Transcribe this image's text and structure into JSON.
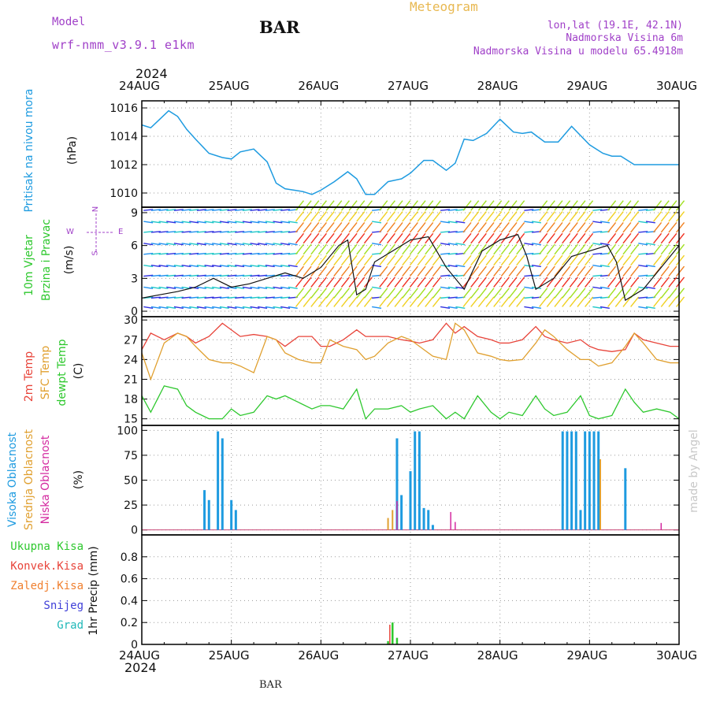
{
  "header": {
    "model_label": "Model",
    "model_name": "wrf-nmm_v3.9.1 e1km",
    "station": "BAR",
    "meteogram": "Meteogram",
    "lonlat": "lon,lat (19.1E, 42.1N)",
    "altitude": "Nadmorska Visina 6m",
    "model_altitude": "Nadmorska Visina u modelu 65.4918m"
  },
  "footer": {
    "station": "BAR"
  },
  "credit": "made by Angel",
  "colors": {
    "pressure": "#1e9be0",
    "wind_speed": "#111111",
    "temp": "#e8443a",
    "sfc_temp": "#e0a030",
    "dewpoint": "#2ec82e",
    "high_cloud": "#1e9be0",
    "mid_cloud": "#e0a030",
    "low_cloud": "#d42aa0",
    "total_precip": "#2ec82e",
    "convective": "#e8443a",
    "frozen": "#f08030",
    "snow": "#4040d8",
    "graupel": "#20b8b8",
    "title_purple": "#a040c8",
    "meteogram_orange": "#e8b850"
  },
  "time_axis": {
    "year": "2024",
    "labels": [
      "24AUG",
      "25AUG",
      "26AUG",
      "27AUG",
      "28AUG",
      "29AUG",
      "30AUG"
    ]
  },
  "chart_data": [
    {
      "type": "line",
      "panel": "pressure",
      "ylabels": [
        "Pritisak na nivou mora"
      ],
      "unit": "(hPa)",
      "ylim": [
        1009,
        1016.5
      ],
      "yticks": [
        1010,
        1012,
        1014,
        1016
      ],
      "grid": true,
      "x_days": [
        0,
        0.1,
        0.2,
        0.3,
        0.4,
        0.5,
        0.6,
        0.75,
        0.9,
        1.0,
        1.1,
        1.25,
        1.4,
        1.5,
        1.6,
        1.7,
        1.8,
        1.9,
        2.0,
        2.15,
        2.3,
        2.4,
        2.5,
        2.6,
        2.75,
        2.9,
        3.0,
        3.15,
        3.25,
        3.4,
        3.5,
        3.6,
        3.7,
        3.85,
        4.0,
        4.15,
        4.25,
        4.35,
        4.5,
        4.65,
        4.8,
        5.0,
        5.15,
        5.25,
        5.35,
        5.5,
        5.6,
        5.75,
        5.9,
        6.0
      ],
      "series": [
        {
          "values": [
            1014.8,
            1014.6,
            1015.2,
            1015.8,
            1015.4,
            1014.5,
            1013.8,
            1012.8,
            1012.5,
            1012.4,
            1012.9,
            1013.1,
            1012.2,
            1010.7,
            1010.3,
            1010.2,
            1010.1,
            1009.9,
            1010.2,
            1010.8,
            1011.5,
            1011.0,
            1009.9,
            1009.9,
            1010.8,
            1011.0,
            1011.4,
            1012.3,
            1012.3,
            1011.6,
            1012.1,
            1013.8,
            1013.7,
            1014.2,
            1015.2,
            1014.3,
            1014.2,
            1014.3,
            1013.6,
            1013.6,
            1014.7,
            1013.4,
            1012.8,
            1012.6,
            1012.6,
            1012.0,
            1012.0,
            1012.0,
            1012.0,
            1012.0
          ]
        }
      ]
    },
    {
      "type": "line",
      "panel": "wind",
      "ylabels": [
        "10m Vjetar",
        "Brzina i Pravac"
      ],
      "unit": "(m/s)",
      "compass": {
        "n": "N",
        "s": "S",
        "w": "W",
        "e": "E"
      },
      "ylim": [
        -0.5,
        9.5
      ],
      "yticks": [
        0,
        3,
        6,
        9
      ],
      "grid": true,
      "x_days": [
        0,
        0.2,
        0.4,
        0.6,
        0.8,
        1.0,
        1.2,
        1.4,
        1.6,
        1.8,
        2.0,
        2.2,
        2.3,
        2.4,
        2.5,
        2.6,
        2.8,
        3.0,
        3.2,
        3.4,
        3.6,
        3.8,
        4.0,
        4.2,
        4.3,
        4.4,
        4.6,
        4.8,
        5.0,
        5.2,
        5.3,
        5.4,
        5.6,
        5.8,
        6.0
      ],
      "series": [
        {
          "values": [
            1.2,
            1.5,
            1.8,
            2.2,
            3.0,
            2.2,
            2.5,
            3.0,
            3.5,
            3.0,
            4.0,
            6.0,
            6.5,
            1.5,
            2.0,
            4.5,
            5.5,
            6.5,
            6.8,
            4.0,
            2.0,
            5.5,
            6.5,
            7.0,
            5.0,
            2.0,
            3.0,
            5.0,
            5.5,
            6.0,
            4.5,
            1.0,
            2.0,
            4.0,
            6.0
          ]
        }
      ]
    },
    {
      "type": "line",
      "panel": "temperature",
      "ylabels": [
        "2m Temp",
        "SFC Temp",
        "dewpt Temp"
      ],
      "unit": "(C)",
      "ylim": [
        14,
        30.5
      ],
      "yticks": [
        15,
        18,
        21,
        24,
        27,
        30
      ],
      "grid": true,
      "x_days": [
        0,
        0.1,
        0.25,
        0.4,
        0.5,
        0.6,
        0.75,
        0.9,
        1.0,
        1.1,
        1.25,
        1.4,
        1.5,
        1.6,
        1.75,
        1.9,
        2.0,
        2.1,
        2.25,
        2.4,
        2.5,
        2.6,
        2.75,
        2.9,
        3.0,
        3.1,
        3.25,
        3.4,
        3.5,
        3.6,
        3.75,
        3.9,
        4.0,
        4.1,
        4.25,
        4.4,
        4.5,
        4.6,
        4.75,
        4.9,
        5.0,
        5.1,
        5.25,
        5.4,
        5.5,
        5.6,
        5.75,
        5.9,
        6.0
      ],
      "series": [
        {
          "name": "2m Temp",
          "values": [
            25.5,
            28.0,
            27.0,
            28.0,
            27.5,
            26.5,
            27.5,
            29.5,
            28.5,
            27.5,
            27.8,
            27.5,
            27.0,
            26.0,
            27.5,
            27.5,
            26.0,
            26.0,
            27.0,
            28.5,
            27.5,
            27.5,
            27.5,
            27.0,
            26.8,
            26.5,
            27.0,
            29.5,
            28.0,
            29.0,
            27.5,
            27.0,
            26.5,
            26.5,
            27.0,
            29.0,
            27.5,
            27.0,
            26.5,
            27.0,
            26.0,
            25.5,
            25.2,
            25.5,
            28.0,
            27.0,
            26.5,
            26.0,
            26.0
          ]
        },
        {
          "name": "SFC Temp",
          "values": [
            25.0,
            21.0,
            26.5,
            28.0,
            27.5,
            26.0,
            24.0,
            23.5,
            23.5,
            23.0,
            22.0,
            27.5,
            27.0,
            25.0,
            24.0,
            23.5,
            23.5,
            27.0,
            26.0,
            25.5,
            24.0,
            24.5,
            26.5,
            27.5,
            27.0,
            26.0,
            24.5,
            24.0,
            29.5,
            28.5,
            25.0,
            24.5,
            24.0,
            23.8,
            24.0,
            26.5,
            28.5,
            27.5,
            25.5,
            24.0,
            24.0,
            23.0,
            23.5,
            26.0,
            28.0,
            26.5,
            24.0,
            23.5,
            23.5
          ]
        },
        {
          "name": "dewpt Temp",
          "values": [
            18.5,
            16.0,
            20.0,
            19.5,
            17.0,
            16.0,
            15.0,
            15.0,
            16.5,
            15.5,
            16.0,
            18.5,
            18.0,
            18.5,
            17.5,
            16.5,
            17.0,
            17.0,
            16.5,
            19.5,
            15.0,
            16.5,
            16.5,
            17.0,
            16.0,
            16.5,
            17.0,
            15.0,
            16.0,
            15.0,
            18.5,
            16.0,
            15.0,
            16.0,
            15.5,
            18.5,
            16.5,
            15.5,
            16.0,
            18.5,
            15.5,
            15.0,
            15.5,
            19.5,
            17.5,
            16.0,
            16.5,
            16.0,
            15.0
          ]
        }
      ]
    },
    {
      "type": "bar",
      "panel": "clouds",
      "ylabels": [
        "Visoka Oblacnost",
        "Srednja Oblacnost",
        "Niska Oblacnost"
      ],
      "unit": "(%)",
      "ylim": [
        -5,
        105
      ],
      "yticks": [
        0,
        25,
        50,
        75,
        100
      ],
      "grid": true,
      "series": [
        {
          "name": "Visoka Oblacnost",
          "x_days": [
            0.7,
            0.75,
            0.85,
            0.9,
            1.0,
            1.05,
            2.85,
            2.9,
            3.0,
            3.05,
            3.1,
            3.15,
            3.2,
            3.25,
            4.7,
            4.75,
            4.8,
            4.85,
            4.9,
            4.95,
            5.0,
            5.05,
            5.1,
            5.4
          ],
          "values": [
            40,
            30,
            99,
            92,
            30,
            20,
            92,
            35,
            59,
            99,
            99,
            22,
            20,
            5,
            99,
            99,
            99,
            99,
            20,
            99,
            99,
            99,
            99,
            62
          ]
        },
        {
          "name": "Srednja Oblacnost",
          "x_days": [
            2.75,
            2.8,
            5.12
          ],
          "values": [
            12,
            20,
            71
          ]
        },
        {
          "name": "Niska Oblacnost",
          "x_days": [
            2.85,
            3.45,
            3.5,
            5.8
          ],
          "values": [
            29,
            18,
            8,
            7
          ]
        }
      ]
    },
    {
      "type": "bar",
      "panel": "precipitation",
      "ylabels": [
        "Ukupna Kisa",
        "Konvek.Kisa",
        "Zaledj.Kisa",
        "Snijeg",
        "Grad"
      ],
      "unit": "1hr Precip (mm)",
      "ylim": [
        0,
        1.0
      ],
      "yticks": [
        0,
        0.2,
        0.4,
        0.6,
        0.8
      ],
      "ytick_labels": [
        "0",
        "0.2",
        "0.4",
        "0.6",
        "0.8"
      ],
      "grid": true,
      "series": [
        {
          "name": "Ukupna Kisa",
          "x_days": [
            2.75,
            2.8,
            2.85
          ],
          "values": [
            0.03,
            0.2,
            0.06
          ]
        },
        {
          "name": "Konvek.Kisa",
          "x_days": [
            2.77
          ],
          "values": [
            0.18
          ]
        }
      ]
    }
  ]
}
